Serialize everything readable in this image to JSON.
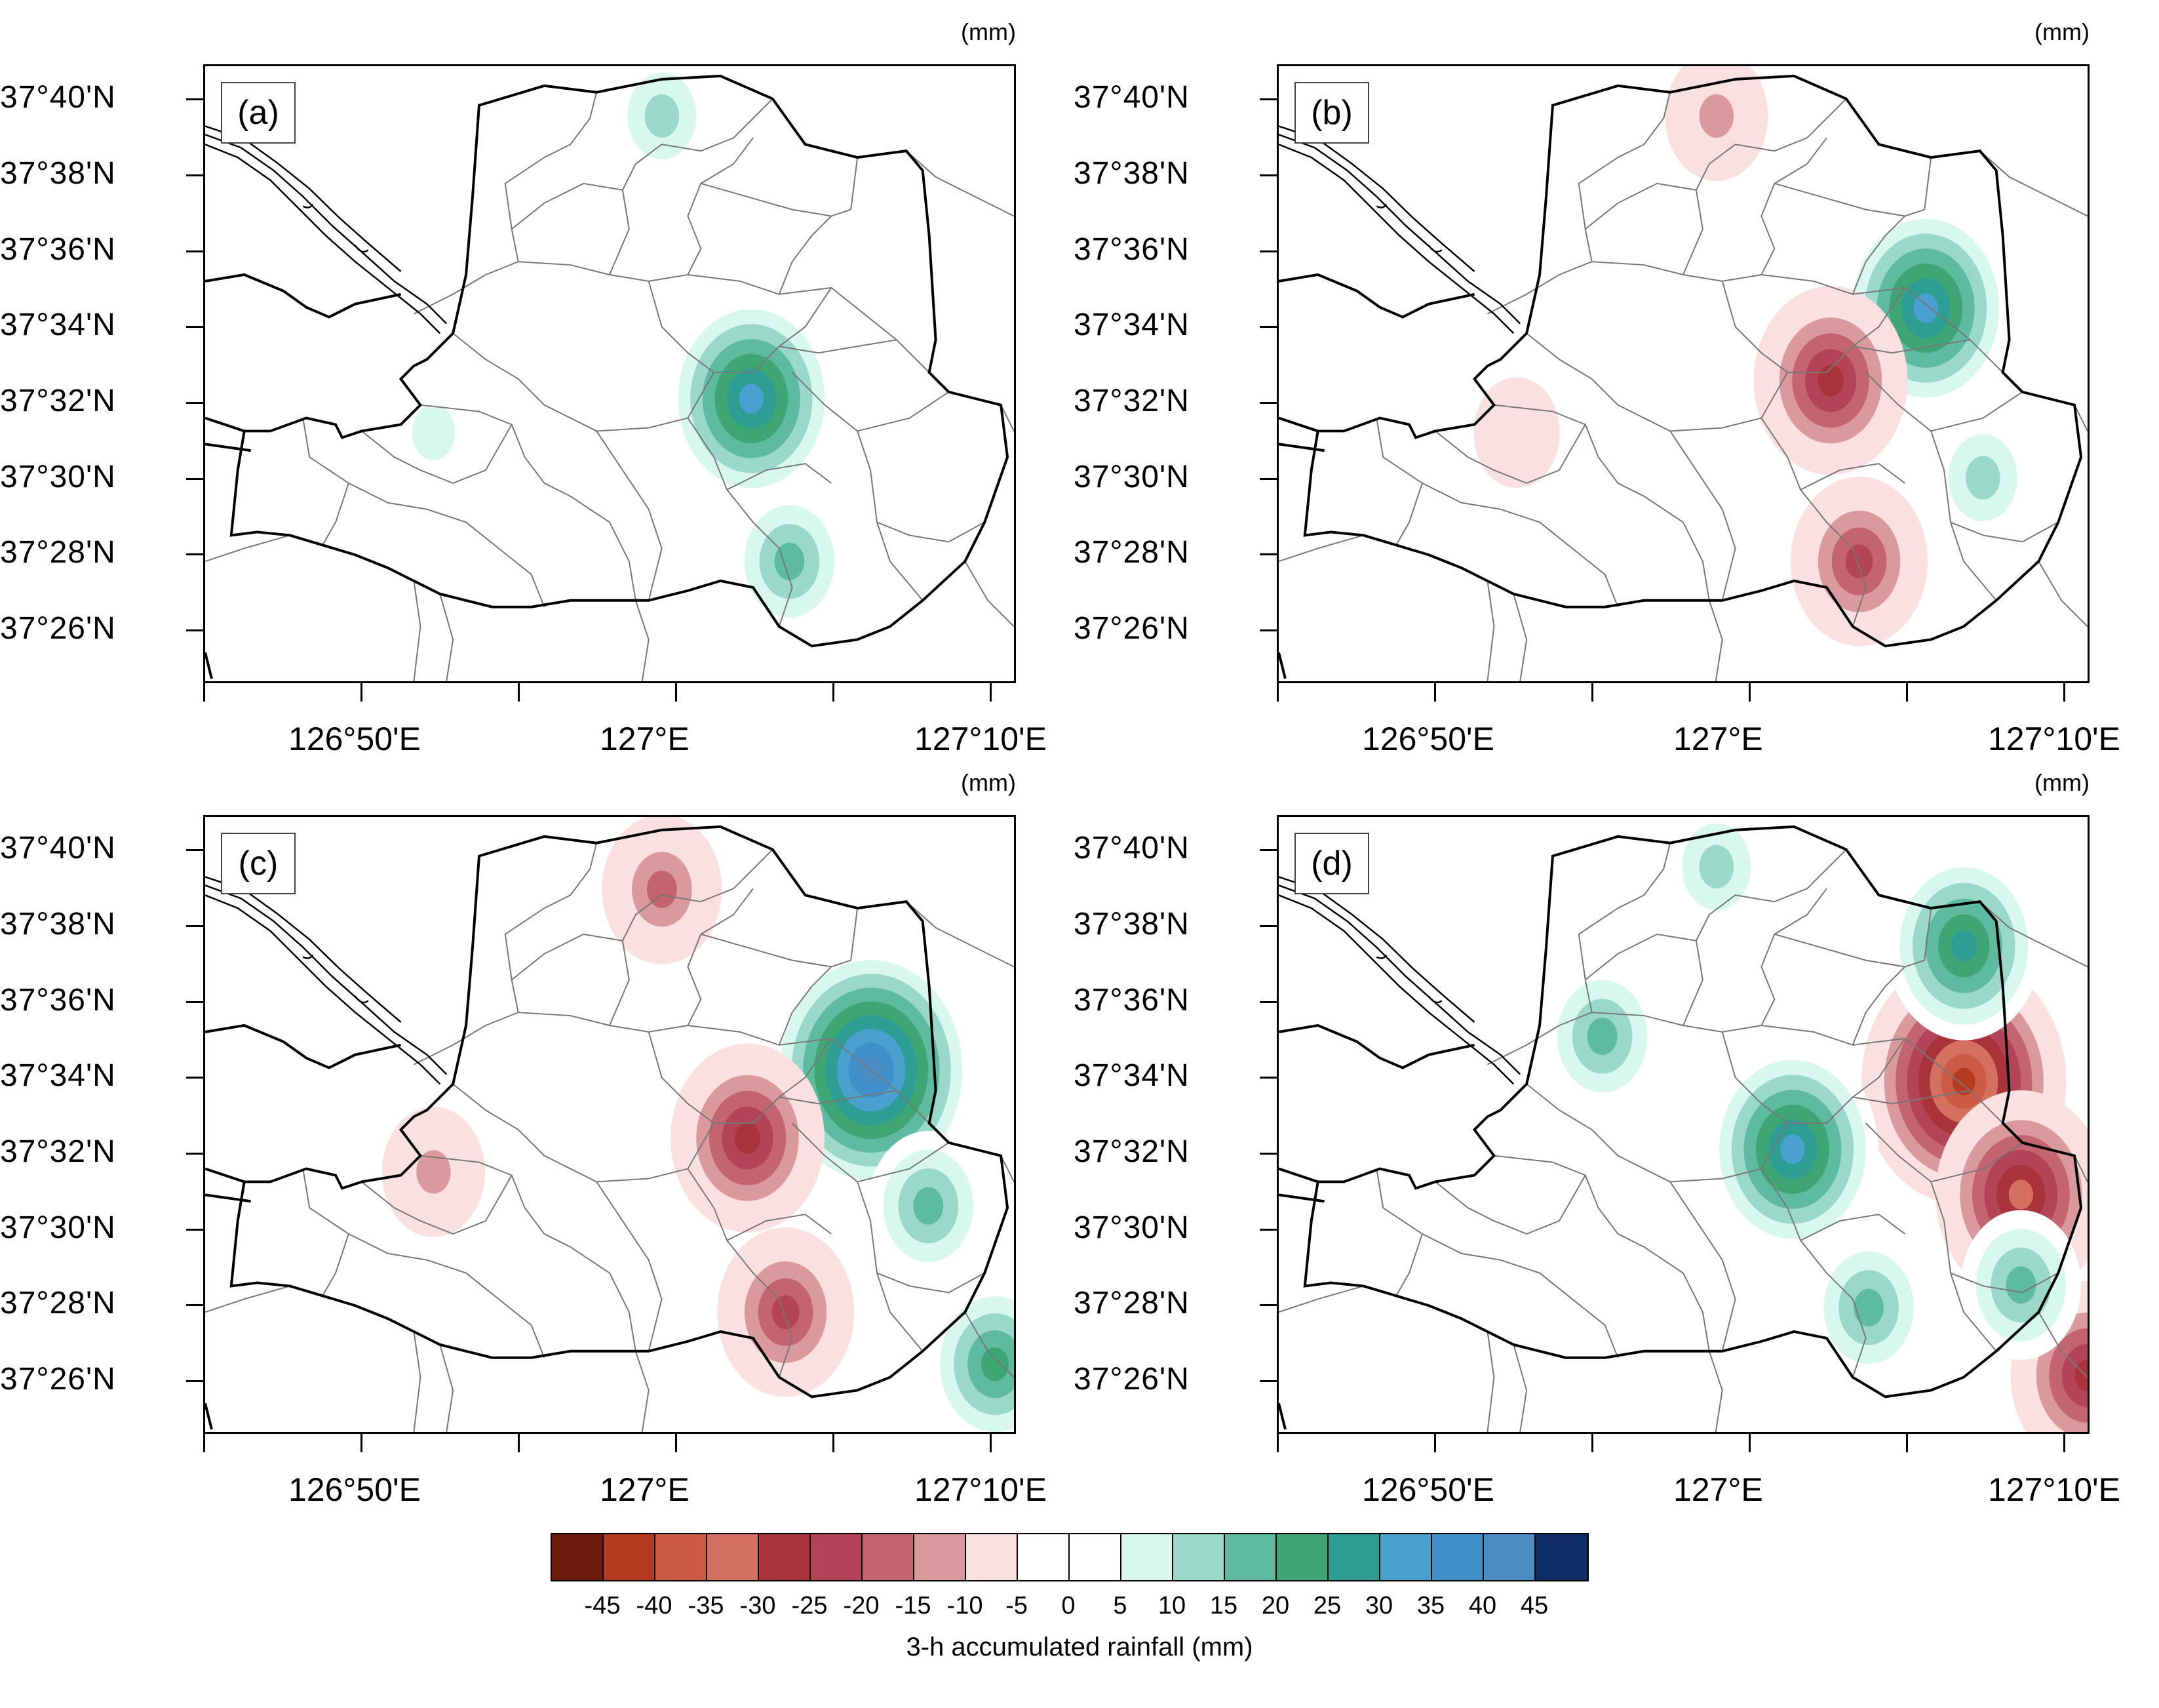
{
  "panels": [
    {
      "label": "(a)",
      "unit": "(mm)"
    },
    {
      "label": "(b)",
      "unit": "(mm)"
    },
    {
      "label": "(c)",
      "unit": "(mm)"
    },
    {
      "label": "(d)",
      "unit": "(mm)"
    }
  ],
  "lat_labels": [
    "37°40'N",
    "37°38'N",
    "37°36'N",
    "37°34'N",
    "37°32'N",
    "37°30'N",
    "37°28'N",
    "37°26'N"
  ],
  "lon_labels": [
    "126°50'E",
    "127°E",
    "127°10'E"
  ],
  "colorbar": {
    "title": "3-h accumulated rainfall (mm)",
    "tick_labels": [
      "-45",
      "-40",
      "-35",
      "-30",
      "-25",
      "-20",
      "-15",
      "-10",
      "-5",
      "0",
      "5",
      "10",
      "15",
      "20",
      "25",
      "30",
      "35",
      "40",
      "45"
    ],
    "colors": [
      "#6b1c0c",
      "#b53a1f",
      "#cc5a45",
      "#d4705f",
      "#a8333b",
      "#b34458",
      "#c46470",
      "#d9999d",
      "#fbe0e2",
      "#ffffff",
      "#ffffff",
      "#d7f7ef",
      "#9ad8c7",
      "#5fbb9f",
      "#3ea675",
      "#2e9e94",
      "#4aa0cf",
      "#3f8fc9",
      "#4b8cc2",
      "#0f2d66"
    ]
  },
  "chart_data": {
    "type": "heatmap",
    "title": "",
    "colorbar_label": "3-h accumulated rainfall (mm)",
    "levels": [
      -45,
      -40,
      -35,
      -30,
      -25,
      -20,
      -15,
      -10,
      -5,
      0,
      5,
      10,
      15,
      20,
      25,
      30,
      35,
      40,
      45
    ],
    "lat_range": [
      "37°25'N",
      "37°41'N"
    ],
    "lon_range": [
      "126°45'E",
      "127°11'E"
    ],
    "panels": [
      {
        "label": "(a)",
        "features": [
          {
            "lon": 127.037,
            "lat": 37.535,
            "value": 35
          },
          {
            "lon": 127.057,
            "lat": 37.463,
            "value": 20
          },
          {
            "lon": 126.99,
            "lat": 37.66,
            "value": 15
          },
          {
            "lon": 126.87,
            "lat": 37.52,
            "value": 10
          }
        ]
      },
      {
        "label": "(b)",
        "features": [
          {
            "lon": 127.09,
            "lat": 37.575,
            "value": 35
          },
          {
            "lon": 127.04,
            "lat": 37.543,
            "value": -30
          },
          {
            "lon": 127.055,
            "lat": 37.463,
            "value": -25
          },
          {
            "lon": 126.98,
            "lat": 37.66,
            "value": -15
          },
          {
            "lon": 126.875,
            "lat": 37.52,
            "value": -10
          },
          {
            "lon": 127.12,
            "lat": 37.5,
            "value": 15
          }
        ]
      },
      {
        "label": "(c)",
        "features": [
          {
            "lon": 127.1,
            "lat": 37.57,
            "value": 45
          },
          {
            "lon": 127.035,
            "lat": 37.54,
            "value": -30
          },
          {
            "lon": 127.055,
            "lat": 37.463,
            "value": -25
          },
          {
            "lon": 126.99,
            "lat": 37.65,
            "value": -20
          },
          {
            "lon": 126.87,
            "lat": 37.525,
            "value": -15
          },
          {
            "lon": 127.165,
            "lat": 37.44,
            "value": 25
          },
          {
            "lon": 127.13,
            "lat": 37.51,
            "value": 20
          }
        ]
      },
      {
        "label": "(d)",
        "features": [
          {
            "lon": 127.11,
            "lat": 37.565,
            "value": -45
          },
          {
            "lon": 127.14,
            "lat": 37.515,
            "value": -35
          },
          {
            "lon": 127.175,
            "lat": 37.435,
            "value": -30
          },
          {
            "lon": 127.02,
            "lat": 37.535,
            "value": 35
          },
          {
            "lon": 127.11,
            "lat": 37.625,
            "value": 30
          },
          {
            "lon": 126.92,
            "lat": 37.585,
            "value": 20
          },
          {
            "lon": 127.14,
            "lat": 37.475,
            "value": 20
          },
          {
            "lon": 127.06,
            "lat": 37.465,
            "value": 20
          },
          {
            "lon": 126.98,
            "lat": 37.66,
            "value": 15
          }
        ]
      }
    ]
  }
}
